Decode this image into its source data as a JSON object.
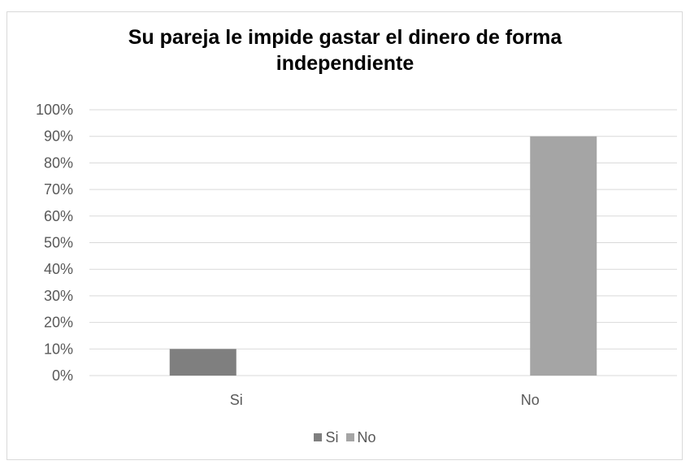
{
  "chart_data": {
    "type": "bar",
    "title_lines": [
      "Su pareja le impide gastar el dinero de forma",
      "independiente"
    ],
    "categories": [
      "Si",
      "No"
    ],
    "series": [
      {
        "name": "Si",
        "values": [
          10,
          null
        ],
        "color": "#7f7f7f"
      },
      {
        "name": "No",
        "values": [
          null,
          90
        ],
        "color": "#a5a5a5"
      }
    ],
    "ylim": [
      0,
      100
    ],
    "yticks": [
      "0%",
      "10%",
      "20%",
      "30%",
      "40%",
      "50%",
      "60%",
      "70%",
      "80%",
      "90%",
      "100%"
    ],
    "ytick_values": [
      0,
      10,
      20,
      30,
      40,
      50,
      60,
      70,
      80,
      90,
      100
    ],
    "grid": true,
    "legend_position": "bottom",
    "xlabel": "",
    "ylabel": ""
  }
}
